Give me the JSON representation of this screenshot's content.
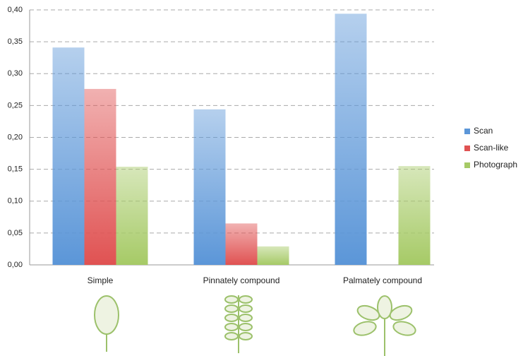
{
  "chart_data": {
    "type": "bar",
    "categories": [
      "Simple",
      "Pinnately compound",
      "Palmately compound"
    ],
    "series": [
      {
        "name": "Scan",
        "color": "#5b96d8",
        "values": [
          0.341,
          0.244,
          0.394
        ]
      },
      {
        "name": "Scan-like",
        "color": "#e05252",
        "values": [
          0.276,
          0.065,
          null
        ]
      },
      {
        "name": "Photograph",
        "color": "#a6ca66",
        "values": [
          0.154,
          0.029,
          0.155
        ]
      }
    ],
    "ylim": [
      0,
      0.4
    ],
    "yticks": [
      {
        "value": 0,
        "label": "0,00"
      },
      {
        "value": 0.05,
        "label": "0,05"
      },
      {
        "value": 0.1,
        "label": "0,10"
      },
      {
        "value": 0.15,
        "label": "0,15"
      },
      {
        "value": 0.2,
        "label": "0,20"
      },
      {
        "value": 0.25,
        "label": "0,25"
      },
      {
        "value": 0.3,
        "label": "0,30"
      },
      {
        "value": 0.35,
        "label": "0,35"
      },
      {
        "value": 0.4,
        "label": "0,40"
      }
    ],
    "grid": true,
    "legend": "right"
  }
}
